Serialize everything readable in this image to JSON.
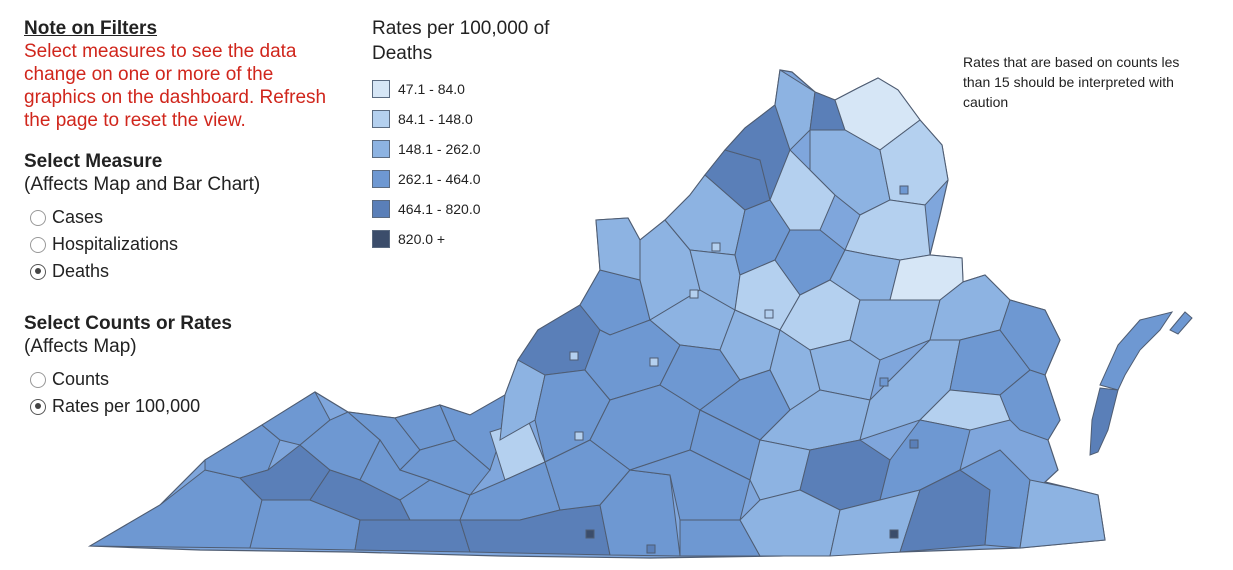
{
  "note": {
    "title": "Note on Filters",
    "lines": [
      "Select measures to see the data",
      "change on one or more of the",
      "graphics on the dashboard. Refresh",
      "the page to reset the view."
    ]
  },
  "measure": {
    "title": "Select Measure",
    "subtitle": "(Affects Map and Bar Chart)",
    "options": [
      {
        "label": "Cases",
        "selected": false
      },
      {
        "label": "Hospitalizations",
        "selected": false
      },
      {
        "label": "Deaths",
        "selected": true
      }
    ]
  },
  "counts_rates": {
    "title": "Select Counts or Rates",
    "subtitle": "(Affects Map)",
    "options": [
      {
        "label": "Counts",
        "selected": false
      },
      {
        "label": "Rates per 100,000",
        "selected": true
      }
    ]
  },
  "legend": {
    "title_line1": "Rates per 100,000 of",
    "title_line2": "Deaths",
    "items": [
      {
        "label": "47.1 - 84.0",
        "color": "#d6e6f6"
      },
      {
        "label": "84.1 - 148.0",
        "color": "#b4d0ef"
      },
      {
        "label": "148.1 - 262.0",
        "color": "#8db3e2"
      },
      {
        "label": "262.1 - 464.0",
        "color": "#6e98d2"
      },
      {
        "label": "464.1 - 820.0",
        "color": "#5a7fb8"
      },
      {
        "label": "820.0 +",
        "color": "#3b4d6b"
      }
    ]
  },
  "caution": {
    "lines": [
      "Rates that are based on counts les",
      "than 15 should be interpreted with",
      "caution"
    ]
  },
  "map": {
    "region": "Virginia",
    "stroke_color": "#4f5d73"
  }
}
